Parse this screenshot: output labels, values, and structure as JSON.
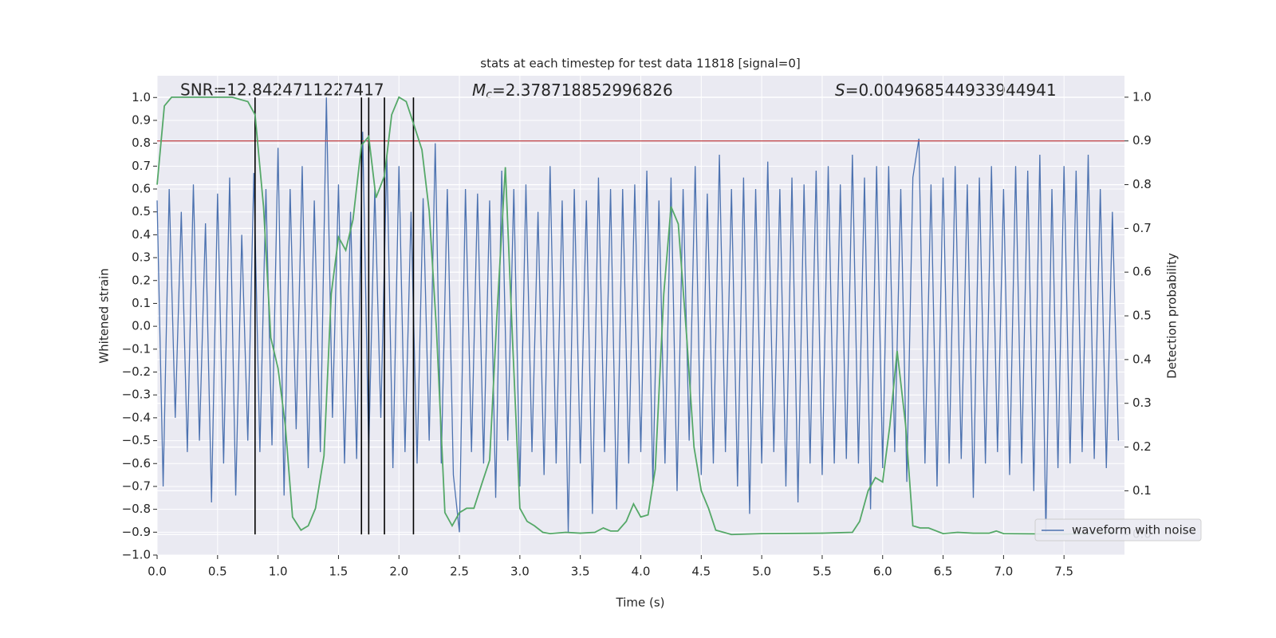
{
  "chart_data": {
    "type": "line",
    "title": "stats at each timestep for test data 11818 [signal=0]",
    "x_label": "Time (s)",
    "y_label": "Whitened strain",
    "y2_label": "Detection probability",
    "annotations": [
      {
        "text": "SNR=12.8424711227417"
      },
      {
        "symbol": "M",
        "subscript": "c",
        "text": "=2.378718852996826"
      },
      {
        "symbol": "S",
        "text": "=0.004968544933944941"
      }
    ],
    "xlim": [
      0,
      8
    ],
    "ylim": [
      -1.0,
      1.095
    ],
    "y2lim": [
      -0.047,
      1.049
    ],
    "xticks": [
      {
        "value": 0,
        "label": "0.0"
      },
      {
        "value": 0.5,
        "label": "0.5"
      },
      {
        "value": 1,
        "label": "1.0"
      },
      {
        "value": 1.5,
        "label": "1.5"
      },
      {
        "value": 2,
        "label": "2.0"
      },
      {
        "value": 2.5,
        "label": "2.5"
      },
      {
        "value": 3,
        "label": "3.0"
      },
      {
        "value": 3.5,
        "label": "3.5"
      },
      {
        "value": 4,
        "label": "4.0"
      },
      {
        "value": 4.5,
        "label": "4.5"
      },
      {
        "value": 5,
        "label": "5.0"
      },
      {
        "value": 5.5,
        "label": "5.5"
      },
      {
        "value": 6,
        "label": "6.0"
      },
      {
        "value": 6.5,
        "label": "6.5"
      },
      {
        "value": 7,
        "label": "7.0"
      },
      {
        "value": 7.5,
        "label": "7.5"
      }
    ],
    "yticks": [
      {
        "value": -1.0,
        "label": "−1.0"
      },
      {
        "value": -0.9,
        "label": "−0.9"
      },
      {
        "value": -0.8,
        "label": "−0.8"
      },
      {
        "value": -0.7,
        "label": "−0.7"
      },
      {
        "value": -0.6,
        "label": "−0.6"
      },
      {
        "value": -0.5,
        "label": "−0.5"
      },
      {
        "value": -0.4,
        "label": "−0.4"
      },
      {
        "value": -0.3,
        "label": "−0.3"
      },
      {
        "value": -0.2,
        "label": "−0.2"
      },
      {
        "value": -0.1,
        "label": "−0.1"
      },
      {
        "value": 0,
        "label": "0.0"
      },
      {
        "value": 0.1,
        "label": "0.1"
      },
      {
        "value": 0.2,
        "label": "0.2"
      },
      {
        "value": 0.3,
        "label": "0.3"
      },
      {
        "value": 0.4,
        "label": "0.4"
      },
      {
        "value": 0.5,
        "label": "0.5"
      },
      {
        "value": 0.6,
        "label": "0.6"
      },
      {
        "value": 0.7,
        "label": "0.7"
      },
      {
        "value": 0.8,
        "label": "0.8"
      },
      {
        "value": 0.9,
        "label": "0.9"
      },
      {
        "value": 1.0,
        "label": "1.0"
      }
    ],
    "y2ticks": [
      {
        "value": 0,
        "label": "0.0"
      },
      {
        "value": 0.1,
        "label": "0.1"
      },
      {
        "value": 0.2,
        "label": "0.2"
      },
      {
        "value": 0.3,
        "label": "0.3"
      },
      {
        "value": 0.4,
        "label": "0.4"
      },
      {
        "value": 0.5,
        "label": "0.5"
      },
      {
        "value": 0.6,
        "label": "0.6"
      },
      {
        "value": 0.7,
        "label": "0.7"
      },
      {
        "value": 0.8,
        "label": "0.8"
      },
      {
        "value": 0.9,
        "label": "0.9"
      },
      {
        "value": 1.0,
        "label": "1.0"
      }
    ],
    "grid": true,
    "legend_position": "lower right",
    "series": [
      {
        "name": "waveform with noise",
        "color": "#4c72b0",
        "x": [
          0,
          0.05,
          0.1,
          0.15,
          0.2,
          0.25,
          0.3,
          0.35,
          0.4,
          0.45,
          0.5,
          0.55,
          0.6,
          0.65,
          0.7,
          0.75,
          0.8,
          0.85,
          0.9,
          0.95,
          1,
          1.05,
          1.1,
          1.15,
          1.2,
          1.25,
          1.3,
          1.35,
          1.4,
          1.45,
          1.5,
          1.55,
          1.6,
          1.65,
          1.7,
          1.75,
          1.8,
          1.85,
          1.9,
          1.95,
          2,
          2.05,
          2.1,
          2.15,
          2.2,
          2.25,
          2.3,
          2.35,
          2.4,
          2.45,
          2.5,
          2.55,
          2.6,
          2.65,
          2.7,
          2.75,
          2.8,
          2.85,
          2.9,
          2.95,
          3,
          3.05,
          3.1,
          3.15,
          3.2,
          3.25,
          3.3,
          3.35,
          3.4,
          3.45,
          3.5,
          3.55,
          3.6,
          3.65,
          3.7,
          3.75,
          3.8,
          3.85,
          3.9,
          3.95,
          4,
          4.05,
          4.1,
          4.15,
          4.2,
          4.25,
          4.3,
          4.35,
          4.4,
          4.45,
          4.5,
          4.55,
          4.6,
          4.65,
          4.7,
          4.75,
          4.8,
          4.85,
          4.9,
          4.95,
          5,
          5.05,
          5.1,
          5.15,
          5.2,
          5.25,
          5.3,
          5.35,
          5.4,
          5.45,
          5.5,
          5.55,
          5.6,
          5.65,
          5.7,
          5.75,
          5.8,
          5.85,
          5.9,
          5.95,
          6,
          6.05,
          6.1,
          6.15,
          6.2,
          6.25,
          6.3,
          6.35,
          6.4,
          6.45,
          6.5,
          6.55,
          6.6,
          6.65,
          6.7,
          6.75,
          6.8,
          6.85,
          6.9,
          6.95,
          7,
          7.05,
          7.1,
          7.15,
          7.2,
          7.25,
          7.3,
          7.35,
          7.4,
          7.45,
          7.5,
          7.55,
          7.6,
          7.65,
          7.7,
          7.75,
          7.8,
          7.85,
          7.9,
          7.95
        ],
        "values": [
          0.55,
          -0.7,
          0.6,
          -0.4,
          0.5,
          -0.55,
          0.62,
          -0.5,
          0.45,
          -0.77,
          0.58,
          -0.6,
          0.65,
          -0.74,
          0.4,
          -0.5,
          0.67,
          -0.55,
          0.6,
          -0.52,
          0.78,
          -0.74,
          0.6,
          -0.45,
          0.7,
          -0.62,
          0.55,
          -0.55,
          1.0,
          -0.4,
          0.62,
          -0.6,
          0.5,
          -0.58,
          0.85,
          -0.55,
          0.6,
          -0.4,
          0.75,
          -0.62,
          0.7,
          -0.55,
          0.5,
          -0.6,
          0.56,
          -0.5,
          0.8,
          -0.6,
          0.6,
          -0.65,
          -0.9,
          0.6,
          -0.55,
          0.58,
          -0.6,
          0.55,
          -0.75,
          0.68,
          -0.5,
          0.6,
          -0.7,
          0.62,
          -0.55,
          0.5,
          -0.65,
          0.7,
          -0.6,
          0.55,
          -0.9,
          0.6,
          -0.6,
          0.55,
          -0.82,
          0.65,
          -0.55,
          0.6,
          -0.8,
          0.6,
          -0.6,
          0.62,
          -0.55,
          0.68,
          -0.7,
          0.55,
          -0.6,
          0.65,
          -0.72,
          0.6,
          -0.5,
          0.7,
          -0.65,
          0.58,
          -0.6,
          0.75,
          -0.55,
          0.6,
          -0.7,
          0.65,
          -0.82,
          0.6,
          -0.6,
          0.72,
          -0.55,
          0.6,
          -0.7,
          0.65,
          -0.77,
          0.62,
          -0.6,
          0.68,
          -0.65,
          0.7,
          -0.6,
          0.62,
          -0.58,
          0.75,
          -0.6,
          0.65,
          -0.8,
          0.7,
          -0.62,
          0.7,
          -0.55,
          0.6,
          -0.68,
          0.65,
          0.82,
          -0.6,
          0.62,
          -0.7,
          0.65,
          -0.6,
          0.7,
          -0.58,
          0.62,
          -0.75,
          0.65,
          -0.6,
          0.7,
          -0.55,
          0.6,
          -0.65,
          0.7,
          -0.6,
          0.68,
          -0.72,
          0.75,
          -0.9,
          0.6,
          -0.62,
          0.7,
          -0.6,
          0.68,
          -0.55,
          0.75,
          -0.58,
          0.6,
          -0.62,
          0.5,
          -0.5
        ]
      }
    ],
    "probability": {
      "color": "#55a868",
      "axis": "y2",
      "x": [
        0,
        0.06,
        0.12,
        0.5,
        0.62,
        0.75,
        0.81,
        0.88,
        0.94,
        1.0,
        1.06,
        1.12,
        1.19,
        1.25,
        1.31,
        1.38,
        1.44,
        1.5,
        1.56,
        1.62,
        1.69,
        1.75,
        1.81,
        1.88,
        1.94,
        2.0,
        2.06,
        2.12,
        2.19,
        2.25,
        2.31,
        2.38,
        2.44,
        2.5,
        2.56,
        2.62,
        2.69,
        2.75,
        2.81,
        2.88,
        2.94,
        3.0,
        3.06,
        3.12,
        3.19,
        3.25,
        3.38,
        3.5,
        3.62,
        3.69,
        3.75,
        3.81,
        3.88,
        3.94,
        4.0,
        4.06,
        4.12,
        4.19,
        4.25,
        4.31,
        4.38,
        4.44,
        4.5,
        4.56,
        4.62,
        4.75,
        5.0,
        5.5,
        5.75,
        5.81,
        5.88,
        5.94,
        6.0,
        6.06,
        6.12,
        6.19,
        6.25,
        6.31,
        6.38,
        6.5,
        6.62,
        6.75,
        6.88,
        6.94,
        7.0,
        7.5,
        7.75,
        7.88,
        7.94
      ],
      "values": [
        0.8,
        0.98,
        1.0,
        1.0,
        1.0,
        0.99,
        0.96,
        0.75,
        0.45,
        0.38,
        0.25,
        0.04,
        0.01,
        0.02,
        0.06,
        0.18,
        0.55,
        0.68,
        0.65,
        0.72,
        0.89,
        0.91,
        0.77,
        0.82,
        0.96,
        1.0,
        0.99,
        0.94,
        0.88,
        0.74,
        0.47,
        0.05,
        0.02,
        0.05,
        0.06,
        0.06,
        0.12,
        0.17,
        0.5,
        0.84,
        0.44,
        0.06,
        0.03,
        0.02,
        0.005,
        0.002,
        0.005,
        0.003,
        0.005,
        0.015,
        0.008,
        0.008,
        0.03,
        0.07,
        0.04,
        0.045,
        0.15,
        0.55,
        0.75,
        0.71,
        0.45,
        0.2,
        0.1,
        0.06,
        0.01,
        0.0,
        0.002,
        0.003,
        0.005,
        0.03,
        0.1,
        0.13,
        0.12,
        0.25,
        0.42,
        0.25,
        0.02,
        0.015,
        0.015,
        0.002,
        0.005,
        0.003,
        0.003,
        0.008,
        0.002,
        0.001,
        0.002,
        0.006,
        0.003
      ]
    },
    "threshold": {
      "value": 0.9,
      "axis": "y2",
      "color": "#c44e52"
    },
    "vlines": {
      "x": [
        0.81,
        1.69,
        1.75,
        1.88,
        2.12
      ],
      "ymin": -0.91,
      "ymax": 1.0,
      "color": "#000000"
    }
  }
}
